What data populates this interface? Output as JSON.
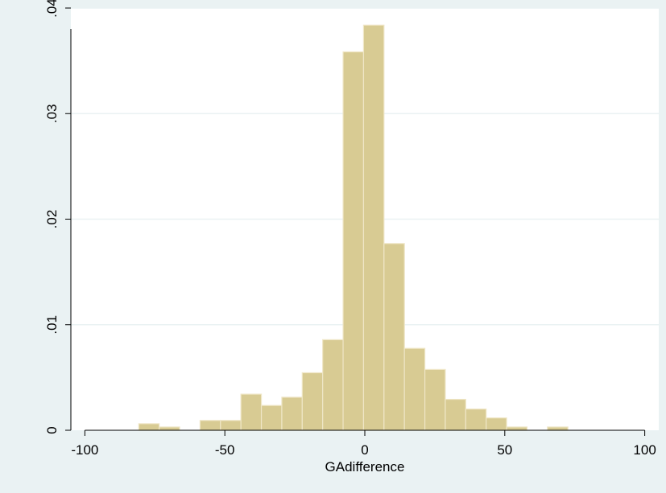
{
  "chart_data": {
    "type": "bar",
    "title": "",
    "xlabel": "GAdifference",
    "ylabel": "",
    "xlim": [
      -105,
      105
    ],
    "ylim": [
      0,
      0.04
    ],
    "grid": true,
    "bin_width": 7.3,
    "bins": [
      {
        "x0": -80.75,
        "value": 0.00062
      },
      {
        "x0": -73.45,
        "value": 0.00031
      },
      {
        "x0": -66.15,
        "value": 0.0
      },
      {
        "x0": -58.85,
        "value": 0.00093
      },
      {
        "x0": -51.55,
        "value": 0.00093
      },
      {
        "x0": -44.25,
        "value": 0.00342
      },
      {
        "x0": -36.95,
        "value": 0.00235
      },
      {
        "x0": -29.65,
        "value": 0.00313
      },
      {
        "x0": -22.35,
        "value": 0.00545
      },
      {
        "x0": -15.05,
        "value": 0.00858
      },
      {
        "x0": -7.75,
        "value": 0.03585
      },
      {
        "x0": -0.45,
        "value": 0.03838
      },
      {
        "x0": 6.85,
        "value": 0.01769
      },
      {
        "x0": 14.15,
        "value": 0.00776
      },
      {
        "x0": 21.45,
        "value": 0.00576
      },
      {
        "x0": 28.75,
        "value": 0.00293
      },
      {
        "x0": 36.05,
        "value": 0.00201
      },
      {
        "x0": 43.35,
        "value": 0.00117
      },
      {
        "x0": 50.65,
        "value": 0.00031
      },
      {
        "x0": 57.95,
        "value": 0.0
      },
      {
        "x0": 65.25,
        "value": 0.00031
      }
    ],
    "x_ticks": [
      {
        "value": -100,
        "label": "-100"
      },
      {
        "value": -50,
        "label": "-50"
      },
      {
        "value": 0,
        "label": "0"
      },
      {
        "value": 50,
        "label": "50"
      },
      {
        "value": 100,
        "label": "100"
      }
    ],
    "y_ticks": [
      {
        "value": 0,
        "label": "0"
      },
      {
        "value": 0.01,
        "label": ".01"
      },
      {
        "value": 0.02,
        "label": ".02"
      },
      {
        "value": 0.03,
        "label": ".03"
      },
      {
        "value": 0.04,
        "label": ".04"
      }
    ],
    "colors": {
      "outer_background": "#eaf2f3",
      "plot_background": "#ffffff",
      "bar_fill": "#d8cb93",
      "bar_stroke": "#efe6c6",
      "grid": "#eaf2f3",
      "axis": "#000000"
    }
  }
}
